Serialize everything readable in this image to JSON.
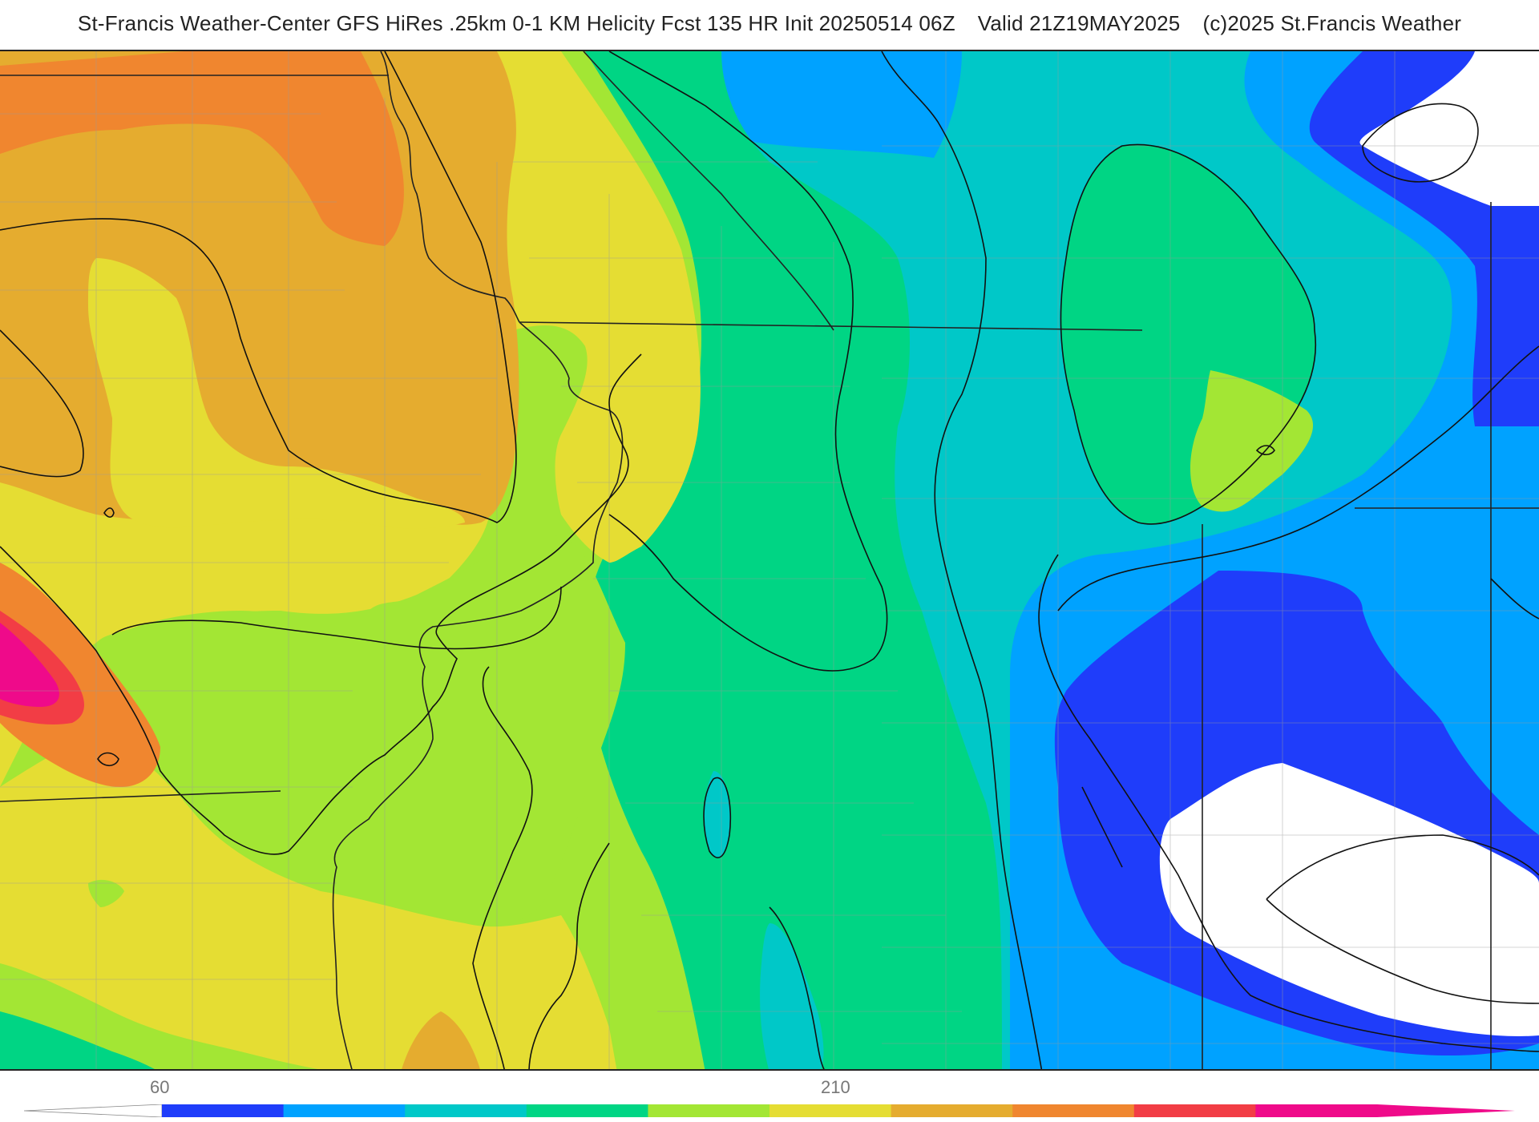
{
  "header": {
    "title_main": "St-Francis Weather-Center GFS HiRes .25km 0-1 KM Helicity Fcst 135 HR Init 20250514 06Z",
    "title_valid": "Valid 21Z19MAY2025",
    "title_copyright": "(c)2025 St.Francis Weather"
  },
  "map": {
    "product": "0-1 KM Helicity",
    "model": "GFS HiRes .25km",
    "forecast_hour": 135,
    "init": "20250514 06Z",
    "valid": "21Z19MAY2025"
  },
  "colorbar": {
    "labels": [
      {
        "value": 60,
        "text": "60"
      },
      {
        "value": 210,
        "text": "210"
      }
    ],
    "bins": [
      {
        "lower": 60,
        "upper": 90,
        "color": "#1f3dfa"
      },
      {
        "lower": 90,
        "upper": 120,
        "color": "#00a2ff"
      },
      {
        "lower": 120,
        "upper": 150,
        "color": "#00c8c8"
      },
      {
        "lower": 150,
        "upper": 180,
        "color": "#00d584"
      },
      {
        "lower": 180,
        "upper": 210,
        "color": "#a3e634"
      },
      {
        "lower": 210,
        "upper": 240,
        "color": "#e5dd33"
      },
      {
        "lower": 240,
        "upper": 270,
        "color": "#e5ac2f"
      },
      {
        "lower": 270,
        "upper": 300,
        "color": "#f0862f"
      },
      {
        "lower": 300,
        "upper": 330,
        "color": "#f23d45"
      },
      {
        "lower": 330,
        "upper": 360,
        "color": "#ef0a8a"
      }
    ],
    "below_color": "#ffffff",
    "above_color": "#ef0a8a"
  },
  "colors": {
    "white": "#ffffff",
    "blue": "#1f3dfa",
    "sky": "#00a2ff",
    "cyan": "#00c8c8",
    "green": "#00d584",
    "lime": "#a3e634",
    "yellow": "#e5dd33",
    "gold": "#e5ac2f",
    "orange": "#f0862f",
    "red": "#f23d45",
    "magenta": "#ef0a8a",
    "contour": "#111111",
    "border": "#222222",
    "county": "#9a9a9a"
  }
}
